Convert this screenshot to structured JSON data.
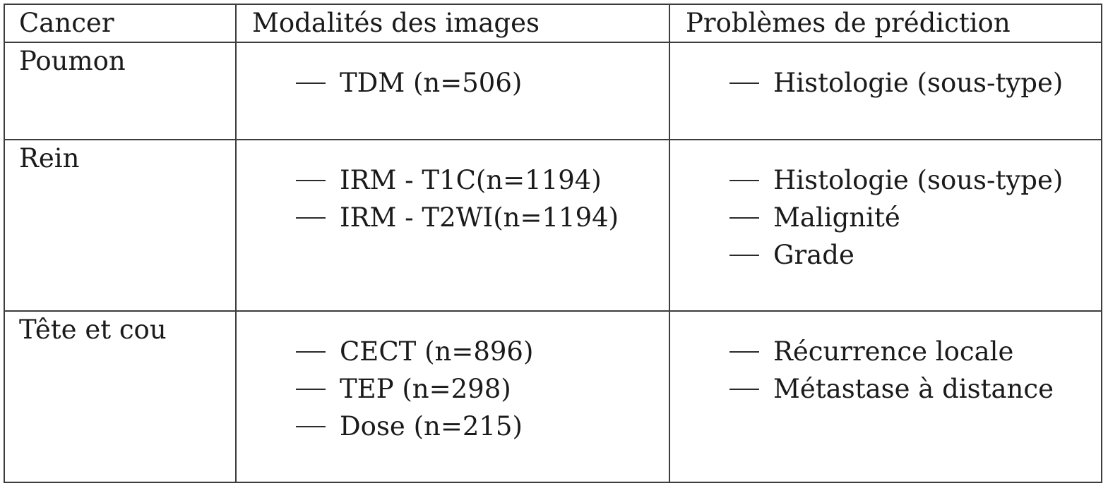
{
  "table": {
    "headers": [
      "Cancer",
      "Modalités des images",
      "Problèmes de prédiction"
    ],
    "rows": [
      {
        "cancer": "Poumon",
        "modalities": [
          "TDM (n=506)"
        ],
        "problems": [
          "Histologie (sous-type)"
        ]
      },
      {
        "cancer": "Rein",
        "modalities": [
          "IRM - T1C(n=1194)",
          "IRM - T2WI(n=1194)"
        ],
        "problems": [
          "Histologie (sous-type)",
          "Malignité",
          "Grade"
        ]
      },
      {
        "cancer": "Tête et cou",
        "modalities": [
          "CECT (n=896)",
          "TEP (n=298)",
          "Dose (n=215)"
        ],
        "problems": [
          "Récurrence locale",
          "Métastase à distance"
        ]
      }
    ]
  }
}
